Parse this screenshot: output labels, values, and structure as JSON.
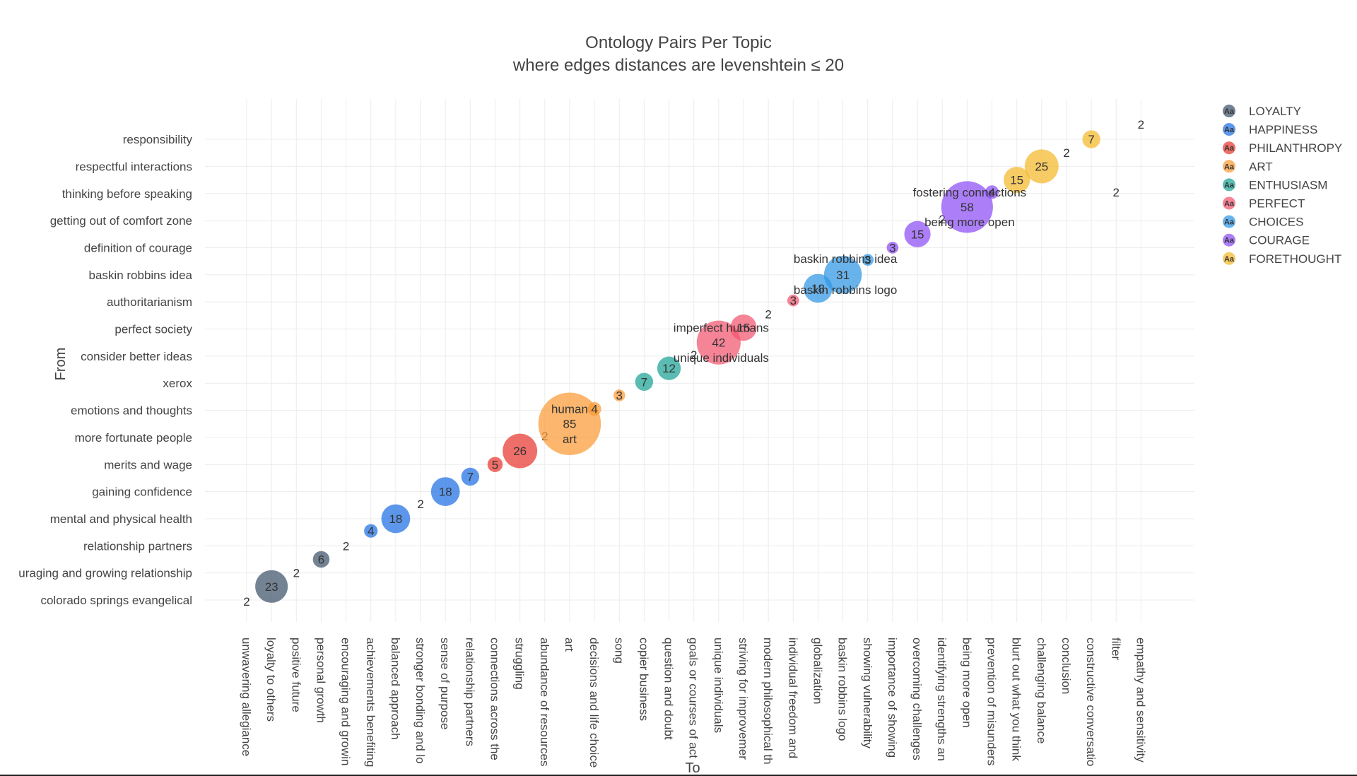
{
  "chart_data": {
    "type": "scatter",
    "title": "Ontology Pairs Per Topic",
    "subtitle": "where edges distances are levenshtein ≤ 20",
    "xlabel": "To",
    "ylabel": "From",
    "grid": true,
    "legend_position": "top-right",
    "x_categories": [
      "unwavering allegiance",
      "loyalty to others",
      "positive future",
      "personal growth",
      "encouraging and growin",
      "achievements benefiting",
      "balanced approach",
      "stronger bonding and lo",
      "sense of purpose",
      "relationship partners",
      "connections across the",
      "struggling",
      "abundance of resources",
      "art",
      "decisions and life choice",
      "song",
      "copier business",
      "question and doubt",
      "goals or courses of act",
      "unique individuals",
      "striving for improvemer",
      "modern philosophical th",
      "individual freedom and",
      "globalization",
      "baskin robbins logo",
      "showing vulnerability",
      "importance of showing",
      "overcoming challenges",
      "identifying strengths an",
      "being more open",
      "prevention of misunders",
      "blurt out what you think",
      "challenging balance",
      "conclusion",
      "constructive conversatio",
      "filter",
      "empathy and sensitivity"
    ],
    "y_categories": [
      "colorado springs evangelical",
      "uraging and growing relationship",
      "relationship partners",
      "mental and physical health",
      "gaining confidence",
      "merits and wage",
      "more fortunate people",
      "emotions and thoughts",
      "xerox",
      "consider better ideas",
      "perfect society",
      "authoritarianism",
      "baskin robbins idea",
      "definition of courage",
      "getting out of comfort zone",
      "thinking before speaking",
      "respectful interactions",
      "responsibility"
    ],
    "series": [
      {
        "name": "LOYALTY",
        "color": "#3f5369",
        "points": [
          {
            "x": 0,
            "y": -0.05,
            "v": 2
          },
          {
            "x": 1,
            "y": 0.5,
            "v": 23
          },
          {
            "x": 2,
            "y": 1.0,
            "v": 2
          },
          {
            "x": 3,
            "y": 1.5,
            "v": 6
          },
          {
            "x": 4,
            "y": 2.0,
            "v": 2
          }
        ]
      },
      {
        "name": "HAPPINESS",
        "color": "#1f6fe5",
        "points": [
          {
            "x": 5,
            "y": 2.55,
            "v": 4
          },
          {
            "x": 6,
            "y": 3.0,
            "v": 18
          },
          {
            "x": 7,
            "y": 3.55,
            "v": 2
          },
          {
            "x": 8,
            "y": 4.0,
            "v": 18
          },
          {
            "x": 9,
            "y": 4.55,
            "v": 7
          }
        ]
      },
      {
        "name": "PHILANTHROPY",
        "color": "#e8372f",
        "points": [
          {
            "x": 10,
            "y": 5.0,
            "v": 5
          },
          {
            "x": 11,
            "y": 5.5,
            "v": 26
          },
          {
            "x": 12,
            "y": 6.05,
            "v": 2
          }
        ]
      },
      {
        "name": "ART",
        "color": "#fb9a34",
        "points": [
          {
            "x": 13,
            "y": 6.5,
            "v": 85
          },
          {
            "x": 14,
            "y": 7.05,
            "v": 4
          },
          {
            "x": 15,
            "y": 7.55,
            "v": 3
          }
        ]
      },
      {
        "name": "ENTHUSIASM",
        "color": "#1aa294",
        "points": [
          {
            "x": 16,
            "y": 8.05,
            "v": 7
          },
          {
            "x": 17,
            "y": 8.55,
            "v": 12
          },
          {
            "x": 18,
            "y": 9.05,
            "v": 2
          }
        ]
      },
      {
        "name": "PERFECT",
        "color": "#f2556f",
        "points": [
          {
            "x": 19,
            "y": 9.5,
            "v": 42
          },
          {
            "x": 20,
            "y": 10.05,
            "v": 15
          },
          {
            "x": 21,
            "y": 10.55,
            "v": 2
          },
          {
            "x": 22,
            "y": 11.05,
            "v": 3
          }
        ]
      },
      {
        "name": "CHOICES",
        "color": "#2e95e5",
        "points": [
          {
            "x": 23,
            "y": 11.5,
            "v": 18
          },
          {
            "x": 24,
            "y": 12.0,
            "v": 31
          },
          {
            "x": 25,
            "y": 12.55,
            "v": 3
          }
        ]
      },
      {
        "name": "COURAGE",
        "color": "#8c4df5",
        "points": [
          {
            "x": 26,
            "y": 13.0,
            "v": 3
          },
          {
            "x": 27,
            "y": 13.5,
            "v": 15
          },
          {
            "x": 28,
            "y": 14.05,
            "v": 2
          },
          {
            "x": 29,
            "y": 14.5,
            "v": 58
          },
          {
            "x": 30,
            "y": 15.05,
            "v": 4
          }
        ]
      },
      {
        "name": "FORETHOUGHT",
        "color": "#f4b82a",
        "points": [
          {
            "x": 31,
            "y": 15.5,
            "v": 15
          },
          {
            "x": 32,
            "y": 16.0,
            "v": 25
          },
          {
            "x": 33,
            "y": 16.5,
            "v": 2
          },
          {
            "x": 34,
            "y": 17.0,
            "v": 7
          },
          {
            "x": 35,
            "y": 15.05,
            "v": 2
          },
          {
            "x": 36,
            "y": 17.55,
            "v": 2
          }
        ]
      }
    ],
    "annotations": [
      {
        "text": "human",
        "x": 13,
        "y": 7.05
      },
      {
        "text": "art",
        "x": 13,
        "y": 5.95
      },
      {
        "text": "imperfect humans",
        "x": 19.1,
        "y": 10.05
      },
      {
        "text": "unique individuals",
        "x": 19.1,
        "y": 8.95
      },
      {
        "text": "baskin robbins idea",
        "x": 24.1,
        "y": 12.6
      },
      {
        "text": "baskin robbins logo",
        "x": 24.1,
        "y": 11.45
      },
      {
        "text": "fostering connections",
        "x": 29.1,
        "y": 15.05
      },
      {
        "text": "being more open",
        "x": 29.1,
        "y": 13.95
      }
    ]
  }
}
